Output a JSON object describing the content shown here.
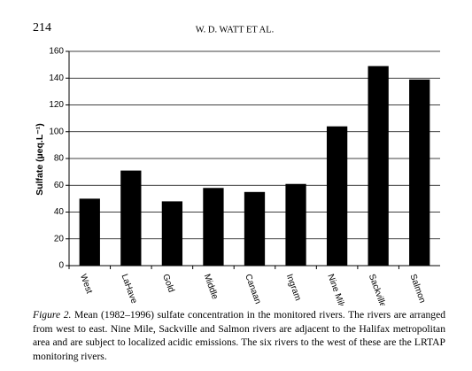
{
  "header": {
    "page_number": "214",
    "running_head": "W. D. WATT ET AL."
  },
  "chart_data": {
    "type": "bar",
    "y_label": "Sulfate (µeq.L⁻¹)",
    "categories": [
      "West",
      "LaHave",
      "Gold",
      "Middle",
      "Canaan",
      "Ingram",
      "Nine Mile",
      "Sackville",
      "Salmon"
    ],
    "values": [
      50,
      71,
      48,
      58,
      55,
      61,
      104,
      149,
      139
    ],
    "color": "#000000",
    "ylim": [
      0,
      160
    ],
    "yticks": [
      0,
      20,
      40,
      60,
      80,
      100,
      120,
      140,
      160
    ],
    "grid": true
  },
  "caption": {
    "label": "Figure 2.",
    "text": "Mean (1982–1996) sulfate concentration in the monitored rivers. The rivers are arranged from west to east. Nine Mile, Sackville and Salmon rivers are adjacent to the Halifax metropolitan area and are subject to localized acidic emissions. The six rivers to the west of these are the LRTAP monitoring rivers."
  }
}
